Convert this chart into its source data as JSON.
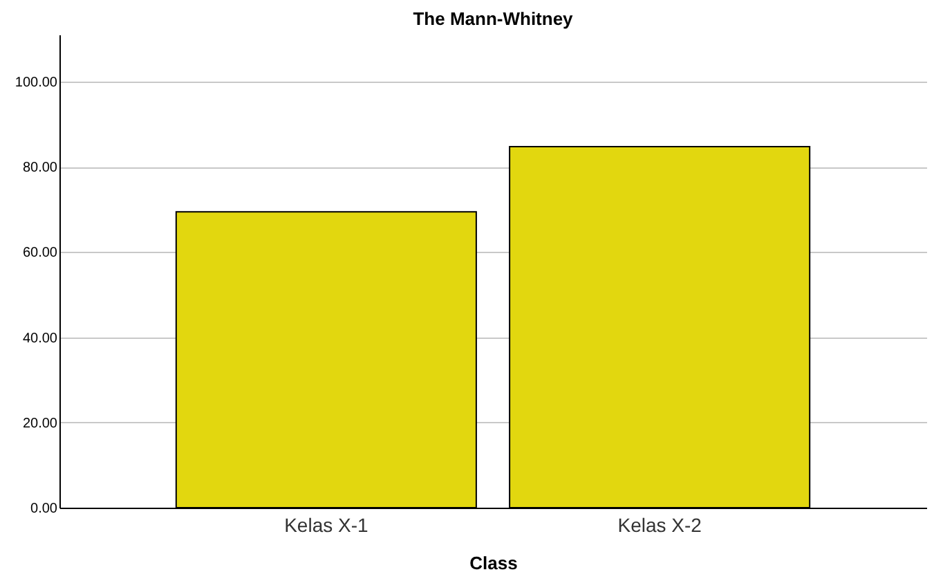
{
  "chart_data": {
    "type": "bar",
    "title": "The Mann-Whitney",
    "xlabel": "Class",
    "categories": [
      "Kelas X-1",
      "Kelas X-2"
    ],
    "values": [
      69.4,
      84.7
    ],
    "color": "#e2d70f",
    "ylim": [
      0,
      111
    ],
    "yticks": [
      {
        "value": 0,
        "label": "0.00"
      },
      {
        "value": 20,
        "label": "20.00"
      },
      {
        "value": 40,
        "label": "40.00"
      },
      {
        "value": 60,
        "label": "60.00"
      },
      {
        "value": 80,
        "label": "80.00"
      },
      {
        "value": 100,
        "label": "100.00"
      }
    ],
    "grid": "y"
  }
}
